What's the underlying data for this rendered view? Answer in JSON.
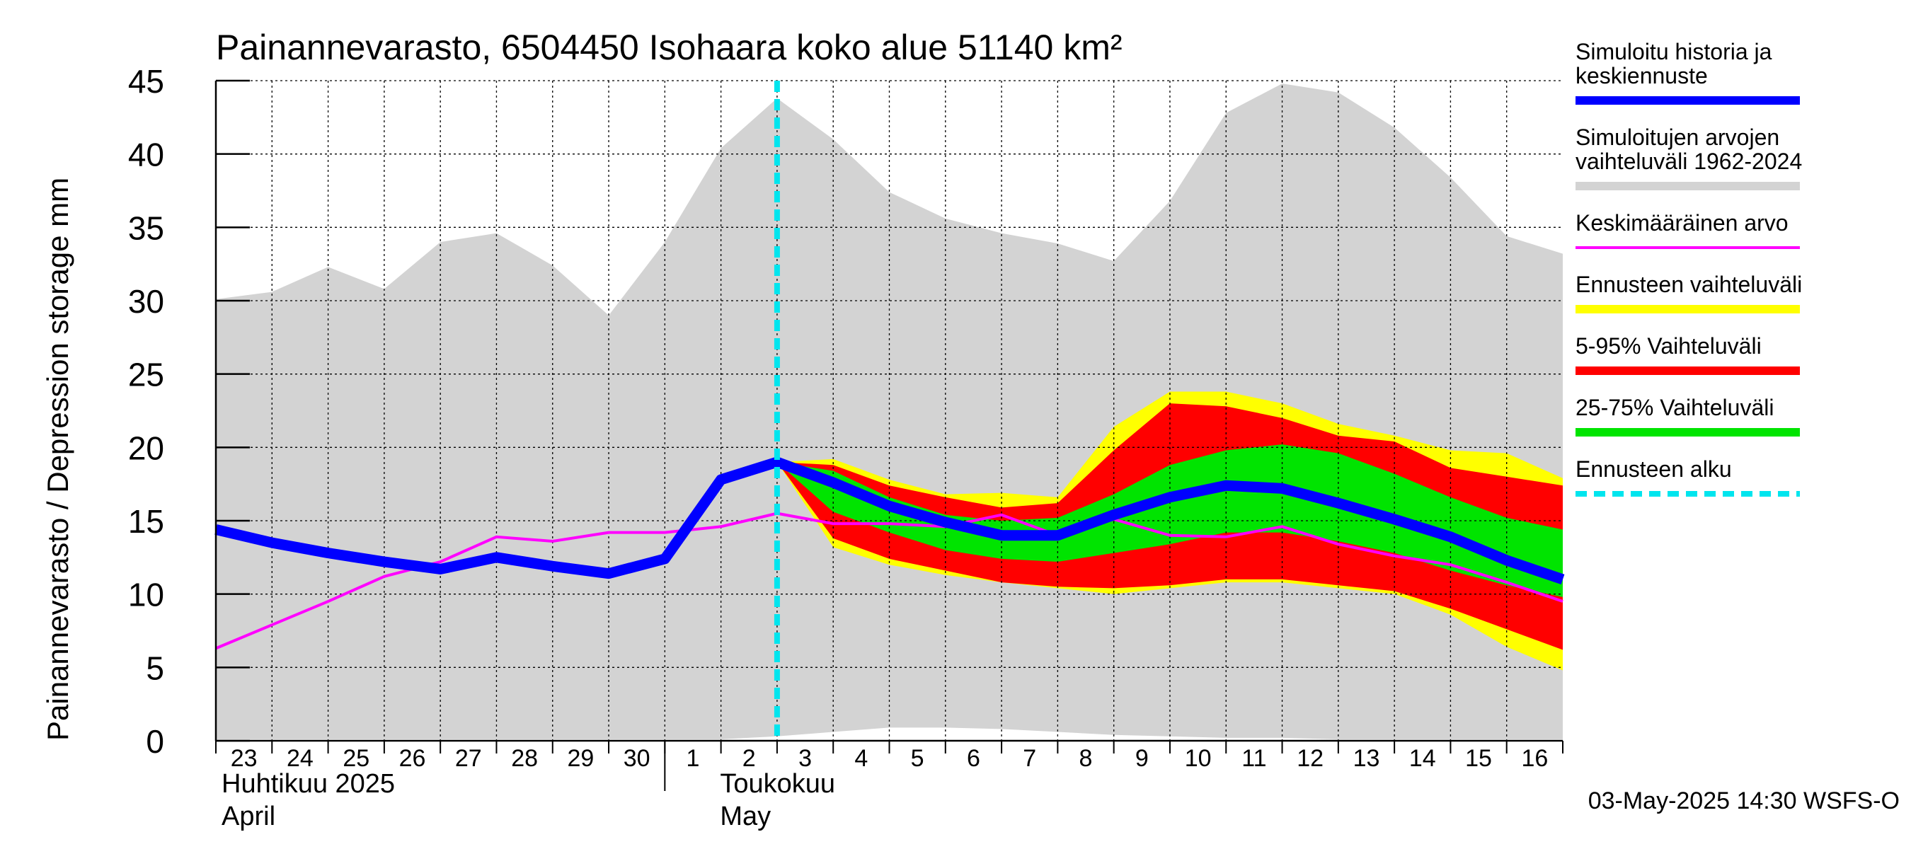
{
  "chart_data": {
    "type": "area",
    "title": "Painannevarasto, 6504450 Isohaara koko alue 51140 km²",
    "ylabel": "Painannevarasto / Depression storage    mm",
    "ylim": [
      0,
      45
    ],
    "yticks": [
      0,
      5,
      10,
      15,
      20,
      25,
      30,
      35,
      40,
      45
    ],
    "grid": true,
    "legend_position": "right",
    "x_day_labels": [
      "23",
      "24",
      "25",
      "26",
      "27",
      "28",
      "29",
      "30",
      "1",
      "2",
      "3",
      "4",
      "5",
      "6",
      "7",
      "8",
      "9",
      "10",
      "11",
      "12",
      "13",
      "14",
      "15",
      "16"
    ],
    "month_labels": [
      {
        "line1": "Huhtikuu  2025",
        "line2": "April"
      },
      {
        "line1": "Toukokuu",
        "line2": "May"
      }
    ],
    "x": [
      "2025-04-23",
      "2025-04-24",
      "2025-04-25",
      "2025-04-26",
      "2025-04-27",
      "2025-04-28",
      "2025-04-29",
      "2025-04-30",
      "2025-05-01",
      "2025-05-02",
      "2025-05-03",
      "2025-05-04",
      "2025-05-05",
      "2025-05-06",
      "2025-05-07",
      "2025-05-08",
      "2025-05-09",
      "2025-05-10",
      "2025-05-11",
      "2025-05-12",
      "2025-05-13",
      "2025-05-14",
      "2025-05-15",
      "2025-05-16",
      "2025-05-17"
    ],
    "forecast_start": "2025-05-03",
    "series": [
      {
        "name": "Simuloitujen arvojen vaihteluväli 1962-2024",
        "kind": "band",
        "color": "#d3d3d3",
        "upper": [
          30.1,
          30.6,
          32.3,
          30.8,
          34.0,
          34.6,
          32.4,
          29.0,
          34.0,
          40.4,
          43.8,
          41.0,
          37.4,
          35.6,
          34.6,
          33.9,
          32.7,
          36.8,
          42.8,
          44.8,
          44.2,
          41.8,
          38.4,
          34.4,
          33.2
        ],
        "lower": [
          0.1,
          0.1,
          0.1,
          0.1,
          0.1,
          0.1,
          0.1,
          0.1,
          0.1,
          0.1,
          0.3,
          0.6,
          0.9,
          0.9,
          0.8,
          0.6,
          0.4,
          0.3,
          0.2,
          0.2,
          0.1,
          0.1,
          0.1,
          0.1,
          0.1
        ]
      },
      {
        "name": "Ennusteen vaihteluväli",
        "kind": "band",
        "color": "#ffff00",
        "x_start": 10,
        "upper": [
          19.0,
          19.2,
          17.8,
          16.8,
          16.9,
          16.6,
          21.4,
          23.8,
          23.8,
          23.0,
          21.6,
          20.8,
          19.8,
          19.6,
          17.9
        ],
        "lower": [
          19.0,
          13.2,
          12.0,
          11.3,
          10.8,
          10.4,
          10.0,
          10.4,
          10.8,
          10.8,
          10.4,
          10.0,
          8.6,
          6.4,
          4.8
        ]
      },
      {
        "name": "5-95% Vaihteluväli",
        "kind": "band",
        "color": "#ff0000",
        "x_start": 10,
        "upper": [
          19.0,
          18.8,
          17.4,
          16.6,
          15.9,
          16.2,
          19.8,
          23.0,
          22.8,
          22.0,
          20.8,
          20.4,
          18.6,
          18.0,
          17.4
        ],
        "lower": [
          19.0,
          13.8,
          12.4,
          11.6,
          10.8,
          10.5,
          10.4,
          10.6,
          11.0,
          11.0,
          10.6,
          10.2,
          9.0,
          7.6,
          6.2
        ]
      },
      {
        "name": "25-75% Vaihteluväli",
        "kind": "band",
        "color": "#00e400",
        "x_start": 10,
        "upper": [
          19.0,
          18.4,
          16.6,
          15.4,
          15.0,
          15.2,
          16.8,
          18.8,
          19.8,
          20.2,
          19.6,
          18.2,
          16.6,
          15.2,
          14.4
        ],
        "lower": [
          19.0,
          15.6,
          14.2,
          13.0,
          12.4,
          12.2,
          12.8,
          13.4,
          14.2,
          14.2,
          13.6,
          12.8,
          11.6,
          10.6,
          9.8
        ]
      },
      {
        "name": "Keskimääräinen arvo",
        "kind": "line",
        "color": "#ff00ff",
        "values": [
          6.3,
          7.9,
          9.5,
          11.2,
          12.2,
          13.9,
          13.6,
          14.2,
          14.2,
          14.6,
          15.5,
          14.8,
          14.8,
          14.6,
          15.4,
          14.0,
          15.1,
          14.0,
          13.9,
          14.6,
          13.4,
          12.6,
          12.0,
          10.8,
          9.5
        ]
      },
      {
        "name": "Simuloitu historia ja keskiennuste",
        "kind": "line",
        "color": "#0000ff",
        "values": [
          14.4,
          13.5,
          12.8,
          12.2,
          11.7,
          12.5,
          11.9,
          11.4,
          12.4,
          17.8,
          19.0,
          17.6,
          16.0,
          14.9,
          14.0,
          14.0,
          15.4,
          16.6,
          17.4,
          17.2,
          16.2,
          15.1,
          13.9,
          12.3,
          11.0
        ]
      }
    ]
  },
  "legend": {
    "items": [
      {
        "label": "Simuloitu historia ja keskiennuste",
        "lines": [
          "Simuloitu historia ja",
          "keskiennuste"
        ],
        "color": "#0000ff",
        "style": "thick"
      },
      {
        "label": "Simuloitujen arvojen vaihteluväli 1962-2024",
        "lines": [
          "Simuloitujen arvojen",
          "vaihteluväli 1962-2024"
        ],
        "color": "#d3d3d3",
        "style": "thick"
      },
      {
        "label": "Keskimääräinen arvo",
        "lines": [
          "Keskimääräinen arvo"
        ],
        "color": "#ff00ff",
        "style": "thin"
      },
      {
        "label": "Ennusteen vaihteluväli",
        "lines": [
          "Ennusteen vaihteluväli"
        ],
        "color": "#ffff00",
        "style": "thick"
      },
      {
        "label": "5-95% Vaihteluväli",
        "lines": [
          "5-95% Vaihteluväli"
        ],
        "color": "#ff0000",
        "style": "thick"
      },
      {
        "label": "25-75% Vaihteluväli",
        "lines": [
          "25-75% Vaihteluväli"
        ],
        "color": "#00e400",
        "style": "thick"
      },
      {
        "label": "Ennusteen alku",
        "lines": [
          "Ennusteen alku"
        ],
        "color": "#00e5ee",
        "style": "dashed"
      }
    ]
  },
  "footer": {
    "timestamp": "03-May-2025 14:30 WSFS-O"
  }
}
